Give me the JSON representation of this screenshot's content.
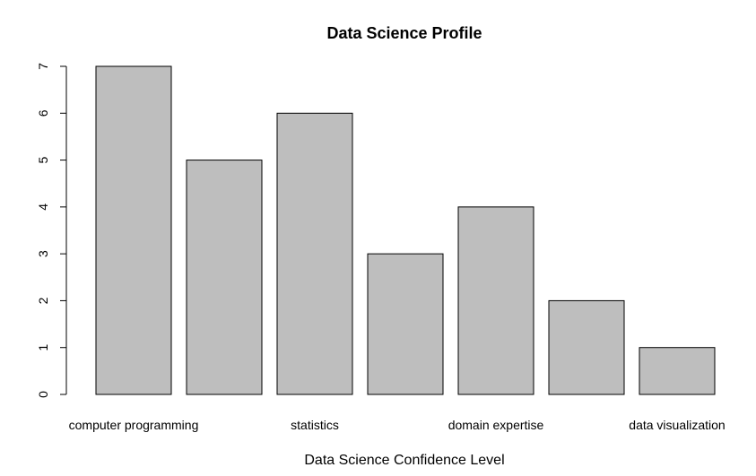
{
  "chart_data": {
    "type": "bar",
    "title": "Data Science Profile",
    "xlabel": "Data Science Confidence Level",
    "ylabel": "",
    "categories": [
      "computer programming",
      "",
      "statistics",
      "",
      "domain expertise",
      "",
      "data visualization"
    ],
    "values": [
      7,
      5,
      6,
      3,
      4,
      2,
      1
    ],
    "ylim": [
      0,
      7
    ],
    "yticks": [
      "0",
      "1",
      "2",
      "3",
      "4",
      "5",
      "6",
      "7"
    ],
    "grid": false,
    "bar_color": "#bebebe"
  }
}
